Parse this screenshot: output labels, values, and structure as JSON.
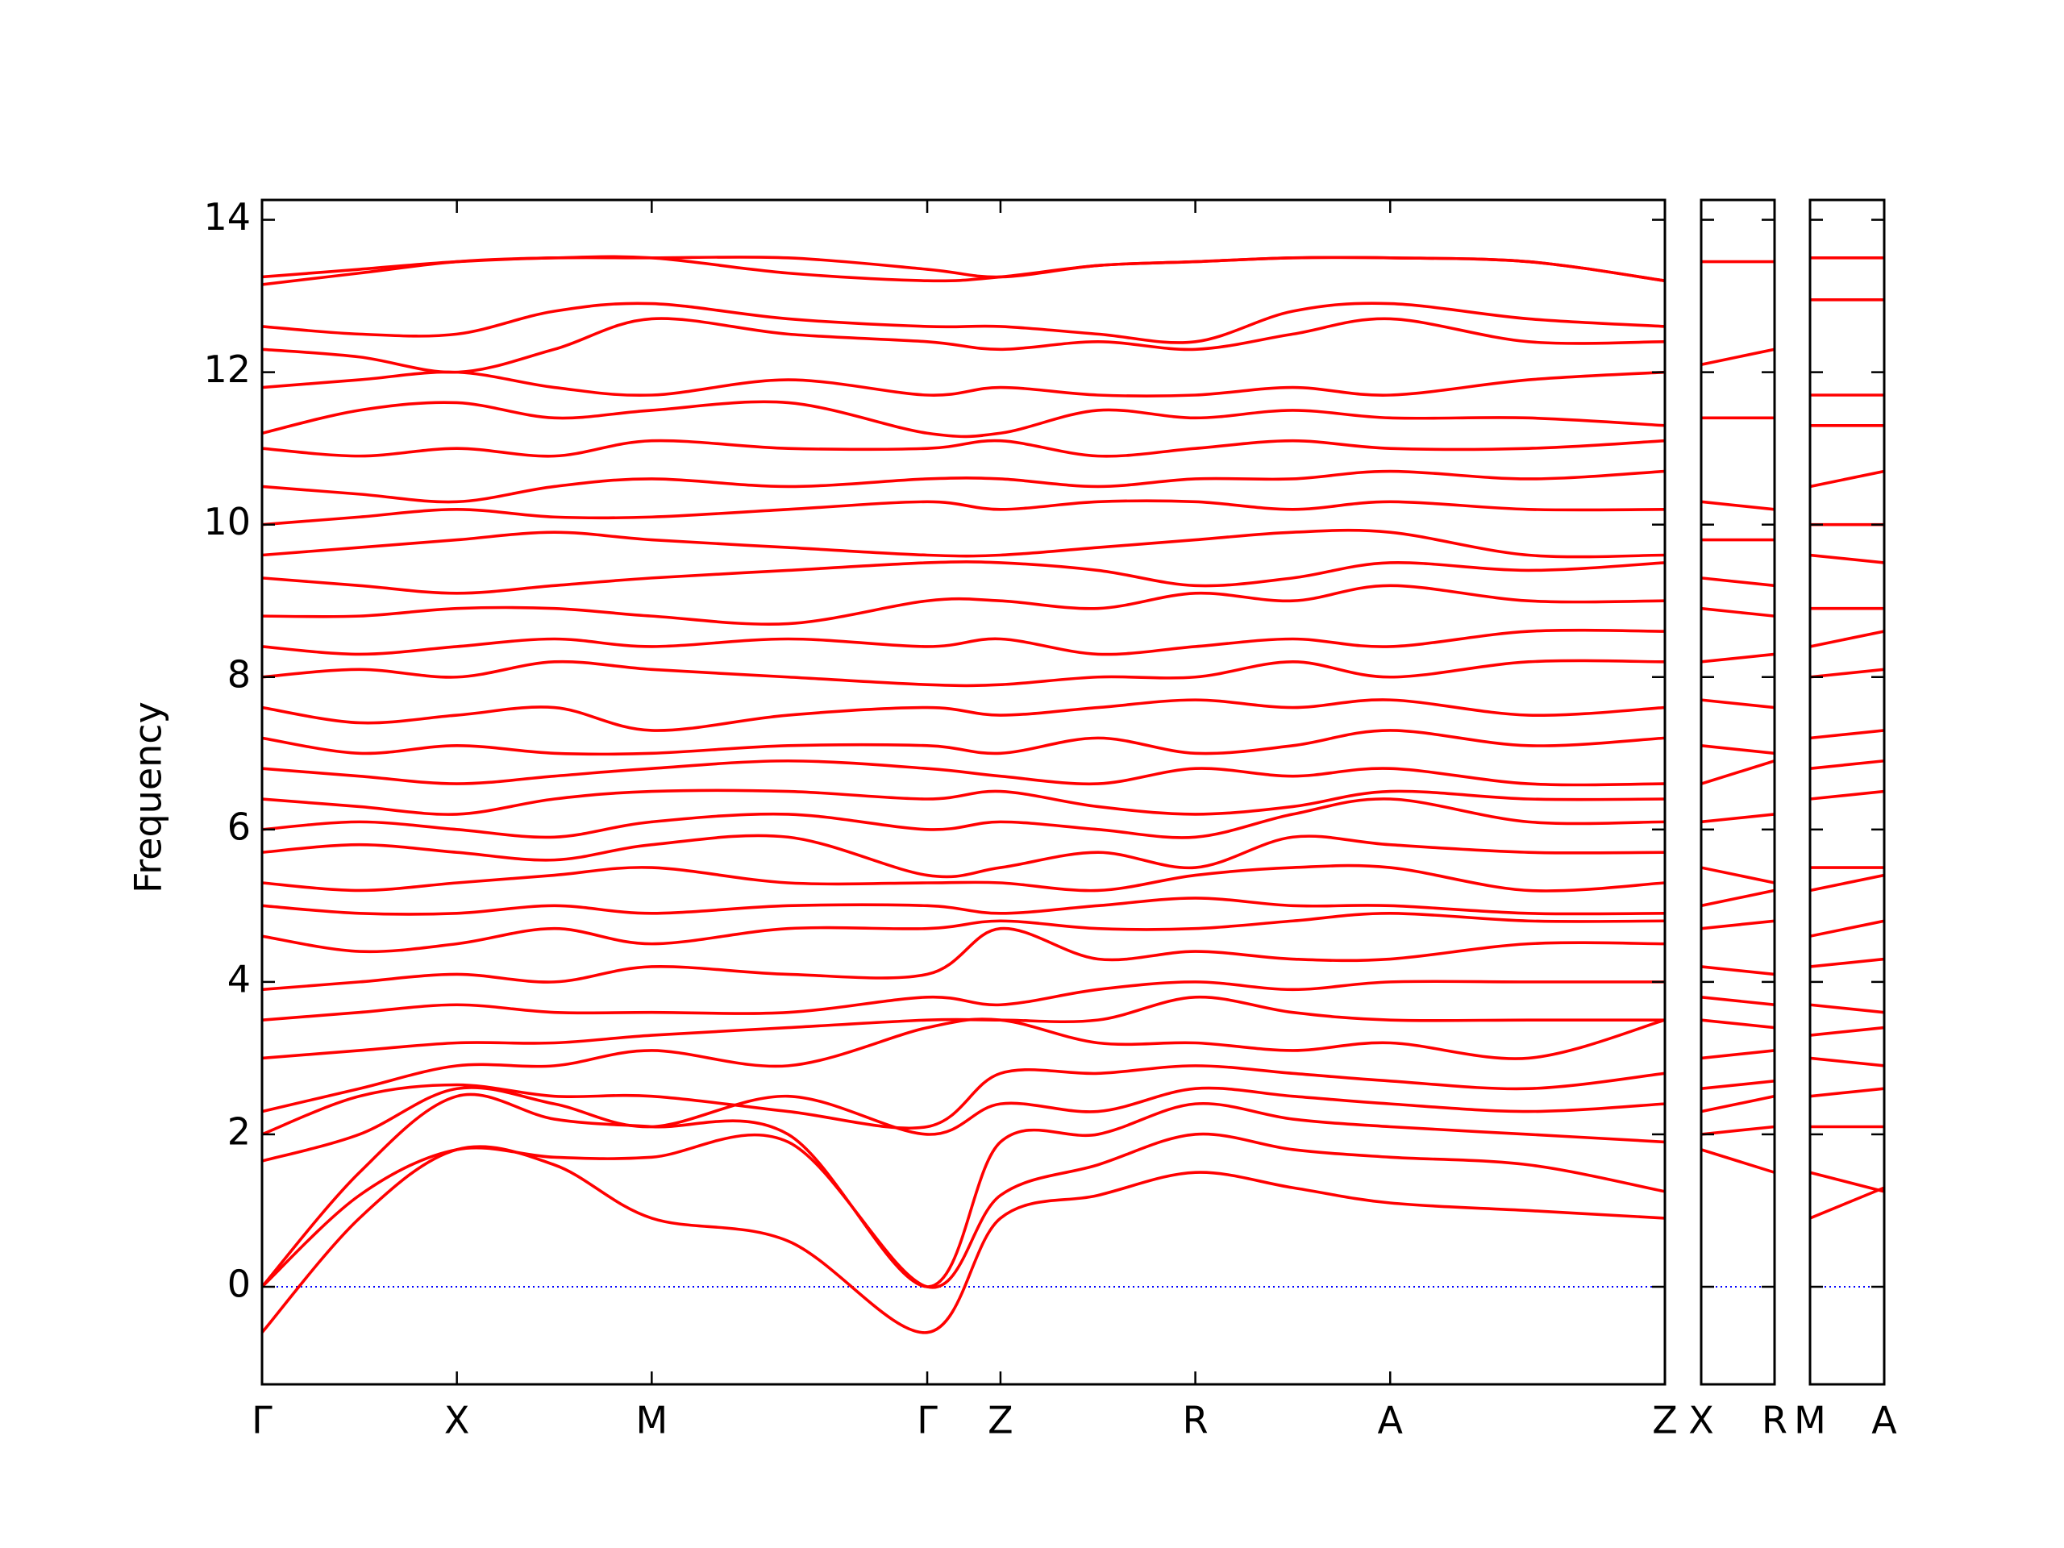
{
  "chart_data": [
    {
      "type": "line",
      "ylabel": "Frequency",
      "color": "#ff0000",
      "ytick_labels": true,
      "ylim": [
        -1.28,
        14.26
      ],
      "yticks": [
        0,
        2,
        4,
        6,
        8,
        10,
        12,
        14
      ],
      "xlim": [
        0,
        7.2
      ],
      "xticks": [
        {
          "value": 0,
          "label": "Γ"
        },
        {
          "value": 1,
          "label": "X"
        },
        {
          "value": 2,
          "label": "M"
        },
        {
          "value": 3.414,
          "label": "Γ"
        },
        {
          "value": 3.79,
          "label": "Z"
        },
        {
          "value": 4.79,
          "label": "R"
        },
        {
          "value": 5.79,
          "label": "A"
        },
        {
          "value": 7.2,
          "label": "Z"
        }
      ],
      "reference_line": {
        "value": 0,
        "color": "#0000ff"
      },
      "x": [
        0,
        0.5,
        1,
        1.5,
        2,
        2.7,
        3.414,
        3.79,
        4.29,
        4.79,
        5.29,
        5.79,
        6.5,
        7.2
      ],
      "series": [
        {
          "values": [
            -0.6,
            0.9,
            1.8,
            1.6,
            0.9,
            0.6,
            -0.6,
            0.9,
            1.2,
            1.5,
            1.3,
            1.1,
            1.0,
            0.9
          ]
        },
        {
          "values": [
            0,
            1.2,
            1.8,
            1.7,
            1.7,
            1.9,
            0,
            1.2,
            1.6,
            2.0,
            1.8,
            1.7,
            1.6,
            1.25
          ]
        },
        {
          "values": [
            0,
            1.5,
            2.5,
            2.2,
            2.1,
            2.0,
            0,
            1.9,
            2.0,
            2.4,
            2.2,
            2.1,
            2.0,
            1.9
          ]
        },
        {
          "values": [
            1.65,
            2.0,
            2.6,
            2.4,
            2.1,
            2.5,
            2.0,
            2.4,
            2.3,
            2.6,
            2.5,
            2.4,
            2.3,
            2.4
          ]
        },
        {
          "values": [
            2.0,
            2.5,
            2.65,
            2.5,
            2.5,
            2.3,
            2.1,
            2.8,
            2.8,
            2.9,
            2.8,
            2.7,
            2.6,
            2.8
          ]
        },
        {
          "values": [
            2.3,
            2.6,
            2.9,
            2.9,
            3.1,
            2.9,
            3.4,
            3.5,
            3.2,
            3.2,
            3.1,
            3.2,
            3.0,
            3.5
          ]
        },
        {
          "values": [
            3.0,
            3.1,
            3.2,
            3.2,
            3.3,
            3.4,
            3.5,
            3.5,
            3.5,
            3.8,
            3.6,
            3.5,
            3.5,
            3.5
          ]
        },
        {
          "values": [
            3.5,
            3.6,
            3.7,
            3.6,
            3.6,
            3.6,
            3.8,
            3.7,
            3.9,
            4.0,
            3.9,
            4.0,
            4.0,
            4.0
          ]
        },
        {
          "values": [
            3.9,
            4.0,
            4.1,
            4.0,
            4.2,
            4.1,
            4.1,
            4.7,
            4.3,
            4.4,
            4.3,
            4.3,
            4.5,
            4.5
          ]
        },
        {
          "values": [
            4.6,
            4.4,
            4.5,
            4.7,
            4.5,
            4.7,
            4.7,
            4.8,
            4.7,
            4.7,
            4.8,
            4.9,
            4.8,
            4.8
          ]
        },
        {
          "values": [
            5.0,
            4.9,
            4.9,
            5.0,
            4.9,
            5.0,
            5.0,
            4.9,
            5.0,
            5.1,
            5.0,
            5.0,
            4.9,
            4.9
          ]
        },
        {
          "values": [
            5.3,
            5.2,
            5.3,
            5.4,
            5.5,
            5.3,
            5.3,
            5.3,
            5.2,
            5.4,
            5.5,
            5.5,
            5.2,
            5.3
          ]
        },
        {
          "values": [
            5.7,
            5.8,
            5.7,
            5.6,
            5.8,
            5.9,
            5.4,
            5.5,
            5.7,
            5.5,
            5.9,
            5.8,
            5.7,
            5.7
          ]
        },
        {
          "values": [
            6.0,
            6.1,
            6.0,
            5.9,
            6.1,
            6.2,
            6.0,
            6.1,
            6.0,
            5.9,
            6.2,
            6.4,
            6.1,
            6.1
          ]
        },
        {
          "values": [
            6.4,
            6.3,
            6.2,
            6.4,
            6.5,
            6.5,
            6.4,
            6.5,
            6.3,
            6.2,
            6.3,
            6.5,
            6.4,
            6.4
          ]
        },
        {
          "values": [
            6.8,
            6.7,
            6.6,
            6.7,
            6.8,
            6.9,
            6.8,
            6.7,
            6.6,
            6.8,
            6.7,
            6.8,
            6.6,
            6.6
          ]
        },
        {
          "values": [
            7.2,
            7.0,
            7.1,
            7.0,
            7.0,
            7.1,
            7.1,
            7.0,
            7.2,
            7.0,
            7.1,
            7.3,
            7.1,
            7.2
          ]
        },
        {
          "values": [
            7.6,
            7.4,
            7.5,
            7.6,
            7.3,
            7.5,
            7.6,
            7.5,
            7.6,
            7.7,
            7.6,
            7.7,
            7.5,
            7.6
          ]
        },
        {
          "values": [
            8.0,
            8.1,
            8.0,
            8.2,
            8.1,
            8.0,
            7.9,
            7.9,
            8.0,
            8.0,
            8.2,
            8.0,
            8.2,
            8.2
          ]
        },
        {
          "values": [
            8.4,
            8.3,
            8.4,
            8.5,
            8.4,
            8.5,
            8.4,
            8.5,
            8.3,
            8.4,
            8.5,
            8.4,
            8.6,
            8.6
          ]
        },
        {
          "values": [
            8.8,
            8.8,
            8.9,
            8.9,
            8.8,
            8.7,
            9.0,
            9.0,
            8.9,
            9.1,
            9.0,
            9.2,
            9.0,
            9.0
          ]
        },
        {
          "values": [
            9.3,
            9.2,
            9.1,
            9.2,
            9.3,
            9.4,
            9.5,
            9.5,
            9.4,
            9.2,
            9.3,
            9.5,
            9.4,
            9.5
          ]
        },
        {
          "values": [
            9.6,
            9.7,
            9.8,
            9.9,
            9.8,
            9.7,
            9.6,
            9.6,
            9.7,
            9.8,
            9.9,
            9.9,
            9.6,
            9.6
          ]
        },
        {
          "values": [
            10.0,
            10.1,
            10.2,
            10.1,
            10.1,
            10.2,
            10.3,
            10.2,
            10.3,
            10.3,
            10.2,
            10.3,
            10.2,
            10.2
          ]
        },
        {
          "values": [
            10.5,
            10.4,
            10.3,
            10.5,
            10.6,
            10.5,
            10.6,
            10.6,
            10.5,
            10.6,
            10.6,
            10.7,
            10.6,
            10.7
          ]
        },
        {
          "values": [
            11.0,
            10.9,
            11.0,
            10.9,
            11.1,
            11.0,
            11.0,
            11.1,
            10.9,
            11.0,
            11.1,
            11.0,
            11.0,
            11.1
          ]
        },
        {
          "values": [
            11.2,
            11.5,
            11.6,
            11.4,
            11.5,
            11.6,
            11.2,
            11.2,
            11.5,
            11.4,
            11.5,
            11.4,
            11.4,
            11.3
          ]
        },
        {
          "values": [
            11.8,
            11.9,
            12.0,
            11.8,
            11.7,
            11.9,
            11.7,
            11.8,
            11.7,
            11.7,
            11.8,
            11.7,
            11.9,
            12.0
          ]
        },
        {
          "values": [
            12.3,
            12.2,
            12.0,
            12.3,
            12.7,
            12.5,
            12.4,
            12.3,
            12.4,
            12.3,
            12.5,
            12.7,
            12.4,
            12.4
          ]
        },
        {
          "values": [
            12.6,
            12.5,
            12.5,
            12.8,
            12.9,
            12.7,
            12.6,
            12.6,
            12.5,
            12.4,
            12.8,
            12.9,
            12.7,
            12.6
          ]
        },
        {
          "values": [
            13.15,
            13.3,
            13.45,
            13.5,
            13.5,
            13.3,
            13.2,
            13.25,
            13.4,
            13.45,
            13.5,
            13.5,
            13.45,
            13.2
          ]
        },
        {
          "values": [
            13.25,
            13.35,
            13.45,
            13.5,
            13.5,
            13.5,
            13.35,
            13.25,
            13.4,
            13.45,
            13.5,
            13.5,
            13.45,
            13.2
          ]
        }
      ]
    },
    {
      "type": "line",
      "color": "#ff0000",
      "ytick_labels": false,
      "ylim": [
        -1.28,
        14.26
      ],
      "yticks": [
        0,
        2,
        4,
        6,
        8,
        10,
        12,
        14
      ],
      "xlim": [
        0,
        0.377
      ],
      "xticks": [
        {
          "value": 0,
          "label": "X"
        },
        {
          "value": 0.377,
          "label": "R"
        }
      ],
      "reference_line": {
        "value": 0,
        "color": "#0000ff"
      },
      "x": [
        0,
        0.377
      ],
      "series": [
        {
          "values": [
            1.8,
            1.5
          ]
        },
        {
          "values": [
            2.0,
            2.1
          ]
        },
        {
          "values": [
            2.3,
            2.5
          ]
        },
        {
          "values": [
            2.6,
            2.7
          ]
        },
        {
          "values": [
            3.0,
            3.1
          ]
        },
        {
          "values": [
            3.5,
            3.4
          ]
        },
        {
          "values": [
            3.8,
            3.7
          ]
        },
        {
          "values": [
            4.2,
            4.1
          ]
        },
        {
          "values": [
            4.7,
            4.8
          ]
        },
        {
          "values": [
            5.0,
            5.2
          ]
        },
        {
          "values": [
            5.5,
            5.3
          ]
        },
        {
          "values": [
            6.1,
            6.2
          ]
        },
        {
          "values": [
            6.6,
            6.9
          ]
        },
        {
          "values": [
            7.1,
            7.0
          ]
        },
        {
          "values": [
            7.7,
            7.6
          ]
        },
        {
          "values": [
            8.2,
            8.3
          ]
        },
        {
          "values": [
            8.9,
            8.8
          ]
        },
        {
          "values": [
            9.3,
            9.2
          ]
        },
        {
          "values": [
            9.8,
            9.8
          ]
        },
        {
          "values": [
            10.3,
            10.2
          ]
        },
        {
          "values": [
            11.4,
            11.4
          ]
        },
        {
          "values": [
            12.1,
            12.3
          ]
        },
        {
          "values": [
            13.45,
            13.45
          ]
        }
      ]
    },
    {
      "type": "line",
      "color": "#ff0000",
      "ytick_labels": false,
      "ylim": [
        -1.28,
        14.26
      ],
      "yticks": [
        0,
        2,
        4,
        6,
        8,
        10,
        12,
        14
      ],
      "xlim": [
        0,
        0.377
      ],
      "xticks": [
        {
          "value": 0,
          "label": "M"
        },
        {
          "value": 0.377,
          "label": "A"
        }
      ],
      "reference_line": {
        "value": 0,
        "color": "#0000ff"
      },
      "x": [
        0,
        0.377
      ],
      "series": [
        {
          "values": [
            0.9,
            1.3
          ]
        },
        {
          "values": [
            1.5,
            1.25
          ]
        },
        {
          "values": [
            2.1,
            2.1
          ]
        },
        {
          "values": [
            2.5,
            2.6
          ]
        },
        {
          "values": [
            3.0,
            2.9
          ]
        },
        {
          "values": [
            3.3,
            3.4
          ]
        },
        {
          "values": [
            3.7,
            3.6
          ]
        },
        {
          "values": [
            4.2,
            4.3
          ]
        },
        {
          "values": [
            4.6,
            4.8
          ]
        },
        {
          "values": [
            5.2,
            5.4
          ]
        },
        {
          "values": [
            5.5,
            5.5
          ]
        },
        {
          "values": [
            6.4,
            6.5
          ]
        },
        {
          "values": [
            6.8,
            6.9
          ]
        },
        {
          "values": [
            7.2,
            7.3
          ]
        },
        {
          "values": [
            8.0,
            8.1
          ]
        },
        {
          "values": [
            8.4,
            8.6
          ]
        },
        {
          "values": [
            8.9,
            8.9
          ]
        },
        {
          "values": [
            9.6,
            9.5
          ]
        },
        {
          "values": [
            10.0,
            10.0
          ]
        },
        {
          "values": [
            10.5,
            10.7
          ]
        },
        {
          "values": [
            11.3,
            11.3
          ]
        },
        {
          "values": [
            11.7,
            11.7
          ]
        },
        {
          "values": [
            12.95,
            12.95
          ]
        },
        {
          "values": [
            13.5,
            13.5
          ]
        }
      ]
    }
  ]
}
